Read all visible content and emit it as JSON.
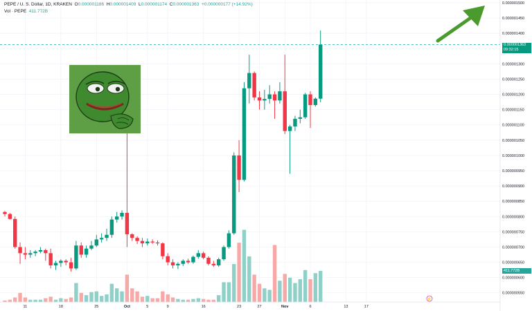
{
  "header": {
    "symbol": "PEPE / U. S. Dollar, 1D, KRAKEN",
    "open_label": "O",
    "open": "0.000001186",
    "high_label": "H",
    "high": "0.000001409",
    "low_label": "L",
    "low": "0.000001174",
    "close_label": "C",
    "close": "0.000001363",
    "change": "+0.000000177 (+14.92%)",
    "vol_label": "Vol · PEPE",
    "vol_value": "411.772B"
  },
  "price_tag": {
    "price": "0.000001363",
    "countdown": "09:32:15"
  },
  "vol_tag": "411.772B",
  "colors": {
    "up": "#089981",
    "down": "#f23645",
    "vol_up": "#8fd1c8",
    "vol_down": "#f7a9a7",
    "arrow": "#4a9a2e",
    "current_line": "#26a69a"
  },
  "chart_data": {
    "type": "candlestick",
    "title": "",
    "xlabel": "",
    "ylabel": "",
    "ylim": [
      5.2e-07,
      1.5e-06
    ],
    "y_ticks": [
      "0.000001500",
      "0.000001450",
      "0.000001400",
      "0.000001350",
      "0.000001300",
      "0.000001250",
      "0.000001200",
      "0.000001150",
      "0.000001100",
      "0.000001050",
      "0.000001000",
      "0.000000950",
      "0.000000900",
      "0.000000850",
      "0.000000800",
      "0.000000750",
      "0.000000700",
      "0.000000650",
      "0.000000600",
      "0.000000550"
    ],
    "x_ticks": [
      {
        "label": "11",
        "index": 4
      },
      {
        "label": "18",
        "index": 11
      },
      {
        "label": "25",
        "index": 18
      },
      {
        "label": "Oct",
        "index": 24,
        "bold": true
      },
      {
        "label": "5",
        "index": 28
      },
      {
        "label": "9",
        "index": 32
      },
      {
        "label": "16",
        "index": 39
      },
      {
        "label": "23",
        "index": 46
      },
      {
        "label": "27",
        "index": 50
      },
      {
        "label": "Nov",
        "index": 55,
        "bold": true
      },
      {
        "label": "6",
        "index": 60
      },
      {
        "label": "13",
        "index": 67
      },
      {
        "label": "17",
        "index": 71
      }
    ],
    "candles": [
      {
        "o": 8.15e-07,
        "h": 8.18e-07,
        "l": 8e-07,
        "c": 8.08e-07,
        "v": 2
      },
      {
        "o": 8.08e-07,
        "h": 8.12e-07,
        "l": 7.9e-07,
        "c": 7.92e-07,
        "v": 3
      },
      {
        "o": 7.92e-07,
        "h": 8e-07,
        "l": 6.95e-07,
        "c": 7e-07,
        "v": 6
      },
      {
        "o": 7e-07,
        "h": 7.15e-07,
        "l": 6.45e-07,
        "c": 6.8e-07,
        "v": 12
      },
      {
        "o": 6.8e-07,
        "h": 7e-07,
        "l": 6.6e-07,
        "c": 6.75e-07,
        "v": 6
      },
      {
        "o": 6.75e-07,
        "h": 6.9e-07,
        "l": 6.65e-07,
        "c": 6.8e-07,
        "v": 3
      },
      {
        "o": 6.8e-07,
        "h": 6.9e-07,
        "l": 6.7e-07,
        "c": 6.85e-07,
        "v": 3
      },
      {
        "o": 6.85e-07,
        "h": 7e-07,
        "l": 6.8e-07,
        "c": 6.9e-07,
        "v": 3
      },
      {
        "o": 6.9e-07,
        "h": 6.95e-07,
        "l": 6.55e-07,
        "c": 6.8e-07,
        "v": 5
      },
      {
        "o": 6.8e-07,
        "h": 6.95e-07,
        "l": 6.3e-07,
        "c": 6.4e-07,
        "v": 7
      },
      {
        "o": 6.4e-07,
        "h": 6.55e-07,
        "l": 6.25e-07,
        "c": 6.48e-07,
        "v": 3
      },
      {
        "o": 6.48e-07,
        "h": 6.6e-07,
        "l": 6.35e-07,
        "c": 6.55e-07,
        "v": 5
      },
      {
        "o": 6.55e-07,
        "h": 6.6e-07,
        "l": 6.4e-07,
        "c": 6.5e-07,
        "v": 4
      },
      {
        "o": 6.5e-07,
        "h": 6.65e-07,
        "l": 6.2e-07,
        "c": 6.3e-07,
        "v": 6
      },
      {
        "o": 6.3e-07,
        "h": 7.2e-07,
        "l": 6.25e-07,
        "c": 7.05e-07,
        "v": 25
      },
      {
        "o": 7.05e-07,
        "h": 7.15e-07,
        "l": 6.65e-07,
        "c": 6.75e-07,
        "v": 12
      },
      {
        "o": 6.75e-07,
        "h": 7.05e-07,
        "l": 6.65e-07,
        "c": 6.95e-07,
        "v": 9
      },
      {
        "o": 6.95e-07,
        "h": 7.2e-07,
        "l": 6.9e-07,
        "c": 7.05e-07,
        "v": 13
      },
      {
        "o": 7.05e-07,
        "h": 7.4e-07,
        "l": 7e-07,
        "c": 7.25e-07,
        "v": 14
      },
      {
        "o": 7.25e-07,
        "h": 7.45e-07,
        "l": 7.15e-07,
        "c": 7.3e-07,
        "v": 8
      },
      {
        "o": 7.3e-07,
        "h": 7.6e-07,
        "l": 7.2e-07,
        "c": 7.4e-07,
        "v": 10
      },
      {
        "o": 7.4e-07,
        "h": 8e-07,
        "l": 7.3e-07,
        "c": 7.9e-07,
        "v": 24
      },
      {
        "o": 7.9e-07,
        "h": 8.15e-07,
        "l": 7.8e-07,
        "c": 8e-07,
        "v": 18
      },
      {
        "o": 8e-07,
        "h": 8.2e-07,
        "l": 7.9e-07,
        "c": 8.12e-07,
        "v": 14
      },
      {
        "o": 8.12e-07,
        "h": 1.08e-06,
        "l": 7e-07,
        "c": 7.42e-07,
        "v": 36
      },
      {
        "o": 7.42e-07,
        "h": 7.45e-07,
        "l": 7.2e-07,
        "c": 7.3e-07,
        "v": 18
      },
      {
        "o": 7.3e-07,
        "h": 7.35e-07,
        "l": 7.1e-07,
        "c": 7.2e-07,
        "v": 14
      },
      {
        "o": 7.2e-07,
        "h": 7.3e-07,
        "l": 7e-07,
        "c": 7.12e-07,
        "v": 7
      },
      {
        "o": 7.12e-07,
        "h": 7.28e-07,
        "l": 7.05e-07,
        "c": 7.18e-07,
        "v": 8
      },
      {
        "o": 7.18e-07,
        "h": 7.25e-07,
        "l": 7.1e-07,
        "c": 7.15e-07,
        "v": 5
      },
      {
        "o": 7.15e-07,
        "h": 7.22e-07,
        "l": 7.05e-07,
        "c": 7.12e-07,
        "v": 5
      },
      {
        "o": 7.12e-07,
        "h": 7.15e-07,
        "l": 6.6e-07,
        "c": 6.7e-07,
        "v": 14
      },
      {
        "o": 6.7e-07,
        "h": 6.8e-07,
        "l": 6.4e-07,
        "c": 6.5e-07,
        "v": 10
      },
      {
        "o": 6.5e-07,
        "h": 6.6e-07,
        "l": 6.3e-07,
        "c": 6.4e-07,
        "v": 6
      },
      {
        "o": 6.4e-07,
        "h": 6.5e-07,
        "l": 6.28e-07,
        "c": 6.45e-07,
        "v": 4
      },
      {
        "o": 6.45e-07,
        "h": 6.6e-07,
        "l": 6.38e-07,
        "c": 6.55e-07,
        "v": 3
      },
      {
        "o": 6.55e-07,
        "h": 6.62e-07,
        "l": 6.45e-07,
        "c": 6.5e-07,
        "v": 3
      },
      {
        "o": 6.5e-07,
        "h": 6.72e-07,
        "l": 6.45e-07,
        "c": 6.68e-07,
        "v": 4
      },
      {
        "o": 6.68e-07,
        "h": 6.9e-07,
        "l": 6.62e-07,
        "c": 6.8e-07,
        "v": 5
      },
      {
        "o": 6.8e-07,
        "h": 6.85e-07,
        "l": 6.6e-07,
        "c": 6.65e-07,
        "v": 4
      },
      {
        "o": 6.65e-07,
        "h": 6.7e-07,
        "l": 6.4e-07,
        "c": 6.45e-07,
        "v": 3
      },
      {
        "o": 6.45e-07,
        "h": 6.55e-07,
        "l": 6.35e-07,
        "c": 6.4e-07,
        "v": 3
      },
      {
        "o": 6.4e-07,
        "h": 6.65e-07,
        "l": 6.35e-07,
        "c": 6.6e-07,
        "v": 9
      },
      {
        "o": 6.6e-07,
        "h": 7.05e-07,
        "l": 6.55e-07,
        "c": 7e-07,
        "v": 26
      },
      {
        "o": 7e-07,
        "h": 7.55e-07,
        "l": 6.95e-07,
        "c": 7.45e-07,
        "v": 26
      },
      {
        "o": 7.45e-07,
        "h": 1.01e-06,
        "l": 7.4e-07,
        "c": 1e-06,
        "v": 50
      },
      {
        "o": 1e-06,
        "h": 1.05e-06,
        "l": 8.8e-07,
        "c": 9.2e-07,
        "v": 78
      },
      {
        "o": 9.2e-07,
        "h": 1.24e-06,
        "l": 9.15e-07,
        "c": 1.22e-06,
        "v": 95
      },
      {
        "o": 1.22e-06,
        "h": 1.33e-06,
        "l": 1.17e-06,
        "c": 1.27e-06,
        "v": 60
      },
      {
        "o": 1.27e-06,
        "h": 1.275e-06,
        "l": 1.18e-06,
        "c": 1.19e-06,
        "v": 36
      },
      {
        "o": 1.19e-06,
        "h": 1.21e-06,
        "l": 1.15e-06,
        "c": 1.18e-06,
        "v": 24
      },
      {
        "o": 1.18e-06,
        "h": 1.215e-06,
        "l": 1.15e-06,
        "c": 1.185e-06,
        "v": 18
      },
      {
        "o": 1.185e-06,
        "h": 1.23e-06,
        "l": 1.17e-06,
        "c": 1.2e-06,
        "v": 16
      },
      {
        "o": 1.2e-06,
        "h": 1.21e-06,
        "l": 1.12e-06,
        "c": 1.18e-06,
        "v": 75
      },
      {
        "o": 1.18e-06,
        "h": 1.24e-06,
        "l": 1.17e-06,
        "c": 1.21e-06,
        "v": 28
      },
      {
        "o": 1.21e-06,
        "h": 1.33e-06,
        "l": 1.07e-06,
        "c": 1.08e-06,
        "v": 37
      },
      {
        "o": 1.08e-06,
        "h": 1.1e-06,
        "l": 9.4e-07,
        "c": 1.095e-06,
        "v": 32
      },
      {
        "o": 1.095e-06,
        "h": 1.13e-06,
        "l": 1.08e-06,
        "c": 1.12e-06,
        "v": 25
      },
      {
        "o": 1.12e-06,
        "h": 1.15e-06,
        "l": 1.105e-06,
        "c": 1.125e-06,
        "v": 30
      },
      {
        "o": 1.125e-06,
        "h": 1.205e-06,
        "l": 1.12e-06,
        "c": 1.2e-06,
        "v": 42
      },
      {
        "o": 1.2e-06,
        "h": 1.21e-06,
        "l": 1.09e-06,
        "c": 1.165e-06,
        "v": 30
      },
      {
        "o": 1.165e-06,
        "h": 1.19e-06,
        "l": 1.16e-06,
        "c": 1.186e-06,
        "v": 38
      },
      {
        "o": 1.186e-06,
        "h": 1.409e-06,
        "l": 1.174e-06,
        "c": 1.363e-06,
        "v": 41
      }
    ]
  }
}
